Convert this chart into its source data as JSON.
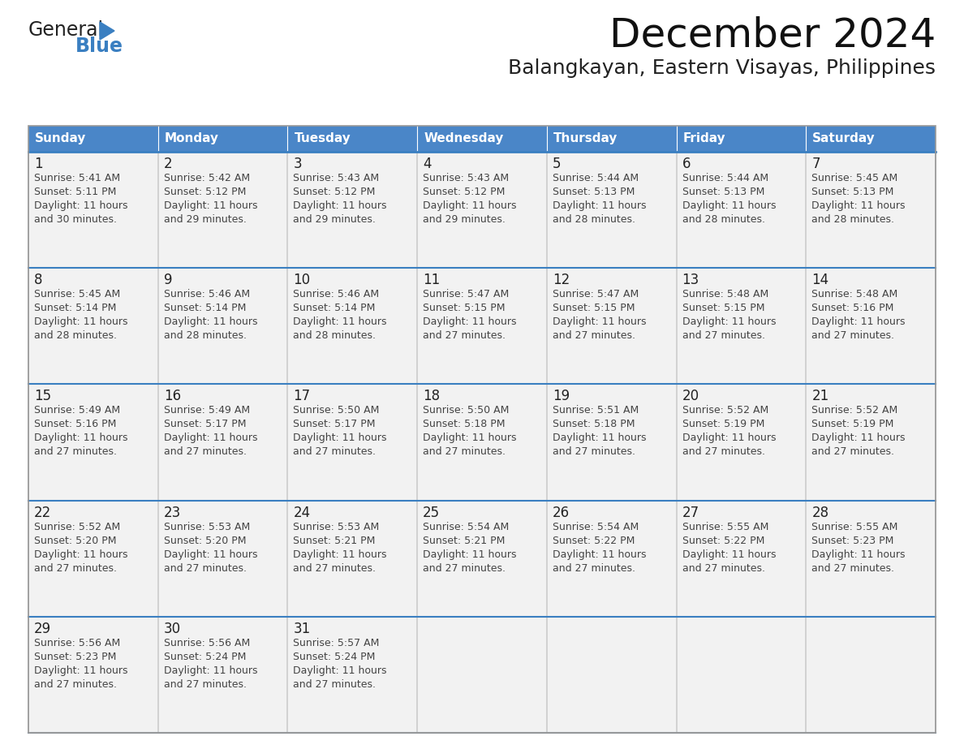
{
  "title": "December 2024",
  "subtitle": "Balangkayan, Eastern Visayas, Philippines",
  "header_bg": "#4a86c8",
  "header_text": "#ffffff",
  "cell_bg_light": "#f2f2f2",
  "cell_bg_white": "#ffffff",
  "cell_border": "#aaaaaa",
  "week_separator": "#3a7fc1",
  "day_number_color": "#222222",
  "day_info_color": "#444444",
  "header_days": [
    "Sunday",
    "Monday",
    "Tuesday",
    "Wednesday",
    "Thursday",
    "Friday",
    "Saturday"
  ],
  "logo_text1_color": "#222222",
  "logo_text2_color": "#3a7fc1",
  "logo_triangle_color": "#3a7fc1",
  "title_color": "#111111",
  "subtitle_color": "#222222",
  "weeks": [
    [
      {
        "day": 1,
        "sunrise": "5:41 AM",
        "sunset": "5:11 PM",
        "daylight": "11 hours and 30 minutes."
      },
      {
        "day": 2,
        "sunrise": "5:42 AM",
        "sunset": "5:12 PM",
        "daylight": "11 hours and 29 minutes."
      },
      {
        "day": 3,
        "sunrise": "5:43 AM",
        "sunset": "5:12 PM",
        "daylight": "11 hours and 29 minutes."
      },
      {
        "day": 4,
        "sunrise": "5:43 AM",
        "sunset": "5:12 PM",
        "daylight": "11 hours and 29 minutes."
      },
      {
        "day": 5,
        "sunrise": "5:44 AM",
        "sunset": "5:13 PM",
        "daylight": "11 hours and 28 minutes."
      },
      {
        "day": 6,
        "sunrise": "5:44 AM",
        "sunset": "5:13 PM",
        "daylight": "11 hours and 28 minutes."
      },
      {
        "day": 7,
        "sunrise": "5:45 AM",
        "sunset": "5:13 PM",
        "daylight": "11 hours and 28 minutes."
      }
    ],
    [
      {
        "day": 8,
        "sunrise": "5:45 AM",
        "sunset": "5:14 PM",
        "daylight": "11 hours and 28 minutes."
      },
      {
        "day": 9,
        "sunrise": "5:46 AM",
        "sunset": "5:14 PM",
        "daylight": "11 hours and 28 minutes."
      },
      {
        "day": 10,
        "sunrise": "5:46 AM",
        "sunset": "5:14 PM",
        "daylight": "11 hours and 28 minutes."
      },
      {
        "day": 11,
        "sunrise": "5:47 AM",
        "sunset": "5:15 PM",
        "daylight": "11 hours and 27 minutes."
      },
      {
        "day": 12,
        "sunrise": "5:47 AM",
        "sunset": "5:15 PM",
        "daylight": "11 hours and 27 minutes."
      },
      {
        "day": 13,
        "sunrise": "5:48 AM",
        "sunset": "5:15 PM",
        "daylight": "11 hours and 27 minutes."
      },
      {
        "day": 14,
        "sunrise": "5:48 AM",
        "sunset": "5:16 PM",
        "daylight": "11 hours and 27 minutes."
      }
    ],
    [
      {
        "day": 15,
        "sunrise": "5:49 AM",
        "sunset": "5:16 PM",
        "daylight": "11 hours and 27 minutes."
      },
      {
        "day": 16,
        "sunrise": "5:49 AM",
        "sunset": "5:17 PM",
        "daylight": "11 hours and 27 minutes."
      },
      {
        "day": 17,
        "sunrise": "5:50 AM",
        "sunset": "5:17 PM",
        "daylight": "11 hours and 27 minutes."
      },
      {
        "day": 18,
        "sunrise": "5:50 AM",
        "sunset": "5:18 PM",
        "daylight": "11 hours and 27 minutes."
      },
      {
        "day": 19,
        "sunrise": "5:51 AM",
        "sunset": "5:18 PM",
        "daylight": "11 hours and 27 minutes."
      },
      {
        "day": 20,
        "sunrise": "5:52 AM",
        "sunset": "5:19 PM",
        "daylight": "11 hours and 27 minutes."
      },
      {
        "day": 21,
        "sunrise": "5:52 AM",
        "sunset": "5:19 PM",
        "daylight": "11 hours and 27 minutes."
      }
    ],
    [
      {
        "day": 22,
        "sunrise": "5:52 AM",
        "sunset": "5:20 PM",
        "daylight": "11 hours and 27 minutes."
      },
      {
        "day": 23,
        "sunrise": "5:53 AM",
        "sunset": "5:20 PM",
        "daylight": "11 hours and 27 minutes."
      },
      {
        "day": 24,
        "sunrise": "5:53 AM",
        "sunset": "5:21 PM",
        "daylight": "11 hours and 27 minutes."
      },
      {
        "day": 25,
        "sunrise": "5:54 AM",
        "sunset": "5:21 PM",
        "daylight": "11 hours and 27 minutes."
      },
      {
        "day": 26,
        "sunrise": "5:54 AM",
        "sunset": "5:22 PM",
        "daylight": "11 hours and 27 minutes."
      },
      {
        "day": 27,
        "sunrise": "5:55 AM",
        "sunset": "5:22 PM",
        "daylight": "11 hours and 27 minutes."
      },
      {
        "day": 28,
        "sunrise": "5:55 AM",
        "sunset": "5:23 PM",
        "daylight": "11 hours and 27 minutes."
      }
    ],
    [
      {
        "day": 29,
        "sunrise": "5:56 AM",
        "sunset": "5:23 PM",
        "daylight": "11 hours and 27 minutes."
      },
      {
        "day": 30,
        "sunrise": "5:56 AM",
        "sunset": "5:24 PM",
        "daylight": "11 hours and 27 minutes."
      },
      {
        "day": 31,
        "sunrise": "5:57 AM",
        "sunset": "5:24 PM",
        "daylight": "11 hours and 27 minutes."
      },
      null,
      null,
      null,
      null
    ]
  ]
}
